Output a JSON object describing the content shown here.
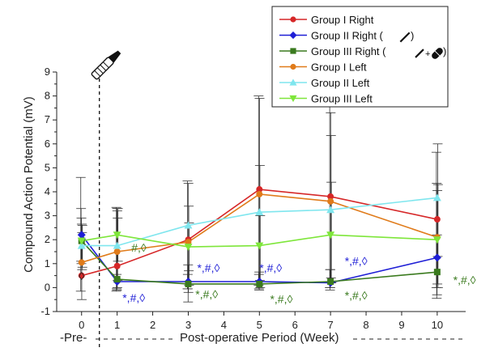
{
  "chart_data": {
    "type": "line",
    "title": "",
    "xlabel": "Post-operative Period (Week)",
    "ylabel": "Compound Action Potential  (mV)",
    "pre_label": "-Pre-",
    "x_ticks": [
      "0",
      "1",
      "2",
      "3",
      "4",
      "5",
      "6",
      "7",
      "8",
      "9",
      "10"
    ],
    "y_ticks": [
      "-1",
      "0",
      "1",
      "2",
      "3",
      "4",
      "5",
      "6",
      "7",
      "8",
      "9"
    ],
    "xlim": [
      -0.7,
      10.8
    ],
    "ylim": [
      -1,
      9
    ],
    "x": [
      0,
      1,
      3,
      5,
      7,
      10
    ],
    "legend_position": "top-right",
    "series": [
      {
        "name": "Group I Right",
        "color": "#d62728",
        "marker": "circle",
        "values": [
          0.5,
          0.9,
          2.0,
          4.1,
          3.8,
          2.85
        ],
        "err_hi": [
          4.6,
          3.35,
          4.45,
          8.0,
          8.0,
          5.65
        ],
        "err_lo": [
          -0.15,
          -0.15,
          -0.05,
          0.1,
          0.0,
          0.0
        ]
      },
      {
        "name": "Group II Right (",
        "color": "#1f1fd6",
        "marker": "diamond",
        "values": [
          2.2,
          0.25,
          0.25,
          0.25,
          0.2,
          1.25
        ],
        "err_hi": [
          3.3,
          0.55,
          0.55,
          0.55,
          0.75,
          4.35
        ],
        "err_lo": [
          1.1,
          -0.05,
          -0.05,
          -0.05,
          -0.1,
          -0.45
        ]
      },
      {
        "name": "Group III Right (",
        "color": "#3a7a1e",
        "marker": "square",
        "values": [
          1.95,
          0.35,
          0.15,
          0.15,
          0.25,
          0.65
        ],
        "err_hi": [
          2.9,
          3.3,
          0.95,
          0.65,
          0.75,
          2.2
        ],
        "err_lo": [
          1.0,
          -0.1,
          -0.6,
          -0.1,
          0.0,
          -0.3
        ]
      },
      {
        "name": "Group I Left",
        "color": "#e07b1a",
        "marker": "circle",
        "values": [
          1.05,
          1.5,
          1.9,
          3.9,
          3.6,
          2.1
        ],
        "err_hi": [
          2.65,
          3.2,
          4.35,
          7.9,
          7.3,
          4.05
        ],
        "err_lo": [
          -0.5,
          0.0,
          -0.2,
          0.15,
          0.2,
          0.15
        ]
      },
      {
        "name": "Group II Left",
        "color": "#7fe6ee",
        "marker": "triangle-up",
        "values": [
          1.75,
          1.75,
          2.6,
          3.15,
          3.25,
          3.75
        ],
        "err_hi": [
          2.3,
          2.9,
          3.4,
          5.1,
          6.35,
          6.0
        ],
        "err_lo": [
          0.75,
          0.3,
          0.7,
          0.3,
          0.4,
          1.3
        ]
      },
      {
        "name": "Group III Left",
        "color": "#7ee63a",
        "marker": "triangle-down",
        "values": [
          1.95,
          2.2,
          1.7,
          1.75,
          2.2,
          2.0
        ],
        "err_hi": [
          2.6,
          3.3,
          2.7,
          3.0,
          4.4,
          4.3
        ],
        "err_lo": [
          0.85,
          1.1,
          0.1,
          0.0,
          0.2,
          0.0
        ]
      }
    ],
    "annotations": [
      {
        "text": "◊",
        "x": -0.08,
        "y": 0.32,
        "color": "#222222"
      },
      {
        "text": "*,#,◊",
        "x": 1.15,
        "y": -0.6,
        "color": "#1f1fd6"
      },
      {
        "text": "#,◊",
        "x": 1.4,
        "y": 1.5,
        "color": "#3a7a1e"
      },
      {
        "text": "*,#,◊",
        "x": 3.25,
        "y": 0.65,
        "color": "#1f1fd6"
      },
      {
        "text": "*,#,◊",
        "x": 3.2,
        "y": -0.45,
        "color": "#3a7a1e"
      },
      {
        "text": "*,#,◊",
        "x": 5.0,
        "y": 0.65,
        "color": "#1f1fd6"
      },
      {
        "text": "*,#,◊",
        "x": 5.3,
        "y": -0.65,
        "color": "#3a7a1e"
      },
      {
        "text": "*,#,◊",
        "x": 7.4,
        "y": 0.95,
        "color": "#1f1fd6"
      },
      {
        "text": "*,#,◊",
        "x": 7.4,
        "y": -0.5,
        "color": "#3a7a1e"
      },
      {
        "text": "*,#,◊",
        "x": 10.45,
        "y": 0.15,
        "color": "#3a7a1e"
      }
    ],
    "legend_suffix_close": ")",
    "icon_names": [
      "scalpel-icon"
    ]
  }
}
